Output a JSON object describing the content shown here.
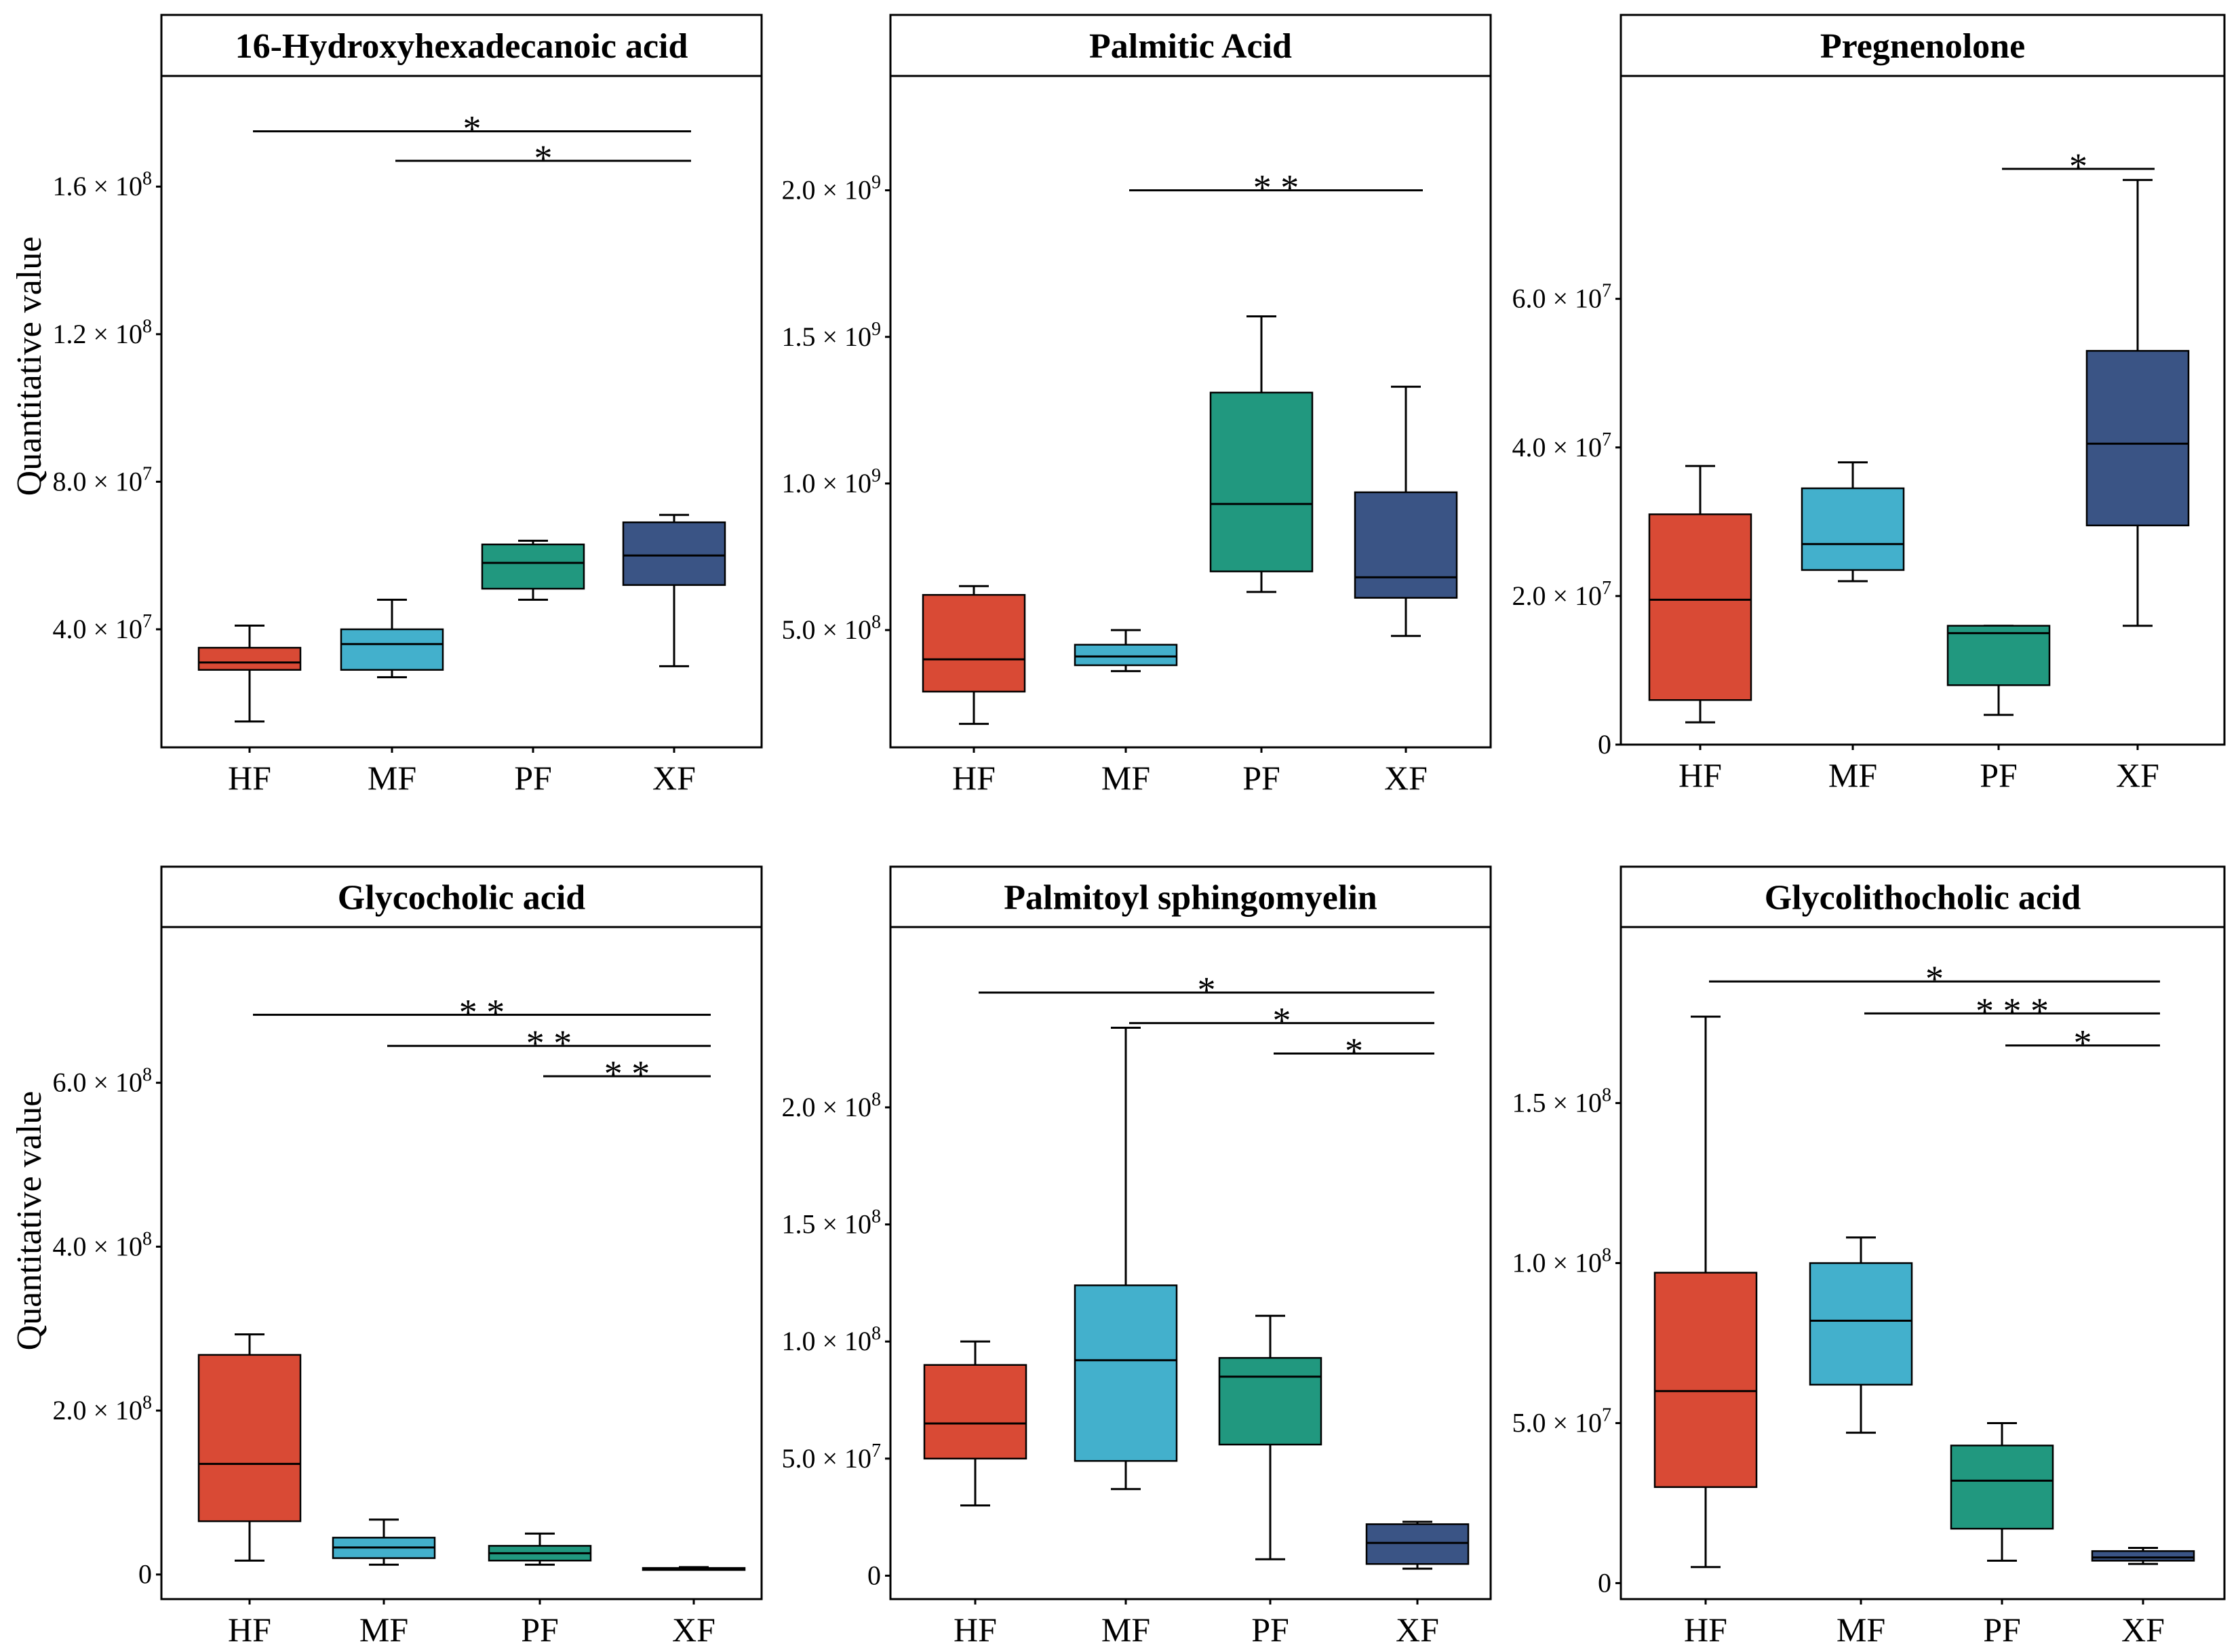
{
  "figure": {
    "ylabel_top": "Quantitative value",
    "ylabel_bottom": "Quantitative value"
  },
  "colors": {
    "HF": "#D94A35",
    "MF": "#43B0CC",
    "PF": "#21987F",
    "XF": "#3A5485"
  },
  "chart_data": [
    {
      "type": "box",
      "title": "16-Hydroxyhexadecanoic acid",
      "ylabel": "Quantitative value",
      "categories": [
        "HF",
        "MF",
        "PF",
        "XF"
      ],
      "ylim": [
        8000000,
        190000000
      ],
      "yticks": [
        {
          "value": 40000000,
          "label": "4.0 × 10⁷"
        },
        {
          "value": 80000000,
          "label": "8.0 × 10⁷"
        },
        {
          "value": 120000000,
          "label": "1.2 × 10⁸"
        },
        {
          "value": 160000000,
          "label": "1.6 × 10⁸"
        }
      ],
      "boxes": [
        {
          "min": 15000000,
          "q1": 29000000,
          "median": 31000000,
          "q3": 35000000,
          "max": 41000000
        },
        {
          "min": 27000000,
          "q1": 29000000,
          "median": 36000000,
          "q3": 40000000,
          "max": 48000000
        },
        {
          "min": 48000000,
          "q1": 51000000,
          "median": 58000000,
          "q3": 63000000,
          "max": 64000000
        },
        {
          "min": 30000000,
          "q1": 52000000,
          "median": 60000000,
          "q3": 69000000,
          "max": 71000000
        }
      ],
      "significance": [
        {
          "from": 0,
          "to": 3,
          "label": "*",
          "y": 175000000
        },
        {
          "from": 1,
          "to": 3,
          "label": "*",
          "y": 167000000
        }
      ]
    },
    {
      "type": "box",
      "title": "Palmitic Acid",
      "ylabel": "",
      "categories": [
        "HF",
        "MF",
        "PF",
        "XF"
      ],
      "ylim": [
        100000000,
        2390000000
      ],
      "yticks": [
        {
          "value": 500000000,
          "label": "5.0 × 10⁸"
        },
        {
          "value": 1000000000,
          "label": "1.0 × 10⁹"
        },
        {
          "value": 1500000000,
          "label": "1.5 × 10⁹"
        },
        {
          "value": 2000000000,
          "label": "2.0 × 10⁹"
        }
      ],
      "boxes": [
        {
          "min": 180000000,
          "q1": 290000000,
          "median": 400000000,
          "q3": 620000000,
          "max": 650000000
        },
        {
          "min": 360000000,
          "q1": 380000000,
          "median": 410000000,
          "q3": 450000000,
          "max": 500000000
        },
        {
          "min": 630000000,
          "q1": 700000000,
          "median": 930000000,
          "q3": 1310000000,
          "max": 1570000000
        },
        {
          "min": 480000000,
          "q1": 610000000,
          "median": 680000000,
          "q3": 970000000,
          "max": 1330000000
        }
      ],
      "significance": [
        {
          "from": 1,
          "to": 3,
          "label": "* *",
          "y": 2000000000
        }
      ]
    },
    {
      "type": "box",
      "title": "Pregnenolone",
      "ylabel": "",
      "categories": [
        "HF",
        "MF",
        "PF",
        "XF"
      ],
      "ylim": [
        0,
        90000000
      ],
      "yticks": [
        {
          "value": 0,
          "label": "0"
        },
        {
          "value": 20000000,
          "label": "2.0 × 10⁷"
        },
        {
          "value": 40000000,
          "label": "4.0 × 10⁷"
        },
        {
          "value": 60000000,
          "label": "6.0 × 10⁷"
        }
      ],
      "boxes": [
        {
          "min": 3000000,
          "q1": 6000000,
          "median": 19500000,
          "q3": 31000000,
          "max": 37500000
        },
        {
          "min": 22000000,
          "q1": 23500000,
          "median": 27000000,
          "q3": 34500000,
          "max": 38000000
        },
        {
          "min": 4000000,
          "q1": 8000000,
          "median": 15000000,
          "q3": 16000000,
          "max": 16000000
        },
        {
          "min": 16000000,
          "q1": 29500000,
          "median": 40500000,
          "q3": 53000000,
          "max": 76000000
        }
      ],
      "significance": [
        {
          "from": 2,
          "to": 3,
          "label": "*",
          "y": 77500000
        }
      ]
    },
    {
      "type": "box",
      "title": "Glycocholic acid",
      "ylabel": "Quantitative value",
      "categories": [
        "HF",
        "MF",
        "PF",
        "XF"
      ],
      "ylim": [
        -30000000,
        790000000
      ],
      "yticks": [
        {
          "value": 0,
          "label": "0"
        },
        {
          "value": 200000000,
          "label": "2.0 × 10⁸"
        },
        {
          "value": 400000000,
          "label": "4.0 × 10⁸"
        },
        {
          "value": 600000000,
          "label": "6.0 × 10⁸"
        }
      ],
      "boxes": [
        {
          "min": 17000000,
          "q1": 65000000,
          "median": 135000000,
          "q3": 268000000,
          "max": 293000000
        },
        {
          "min": 12000000,
          "q1": 20000000,
          "median": 33000000,
          "q3": 45000000,
          "max": 67000000
        },
        {
          "min": 12000000,
          "q1": 17000000,
          "median": 26000000,
          "q3": 35000000,
          "max": 50000000
        },
        {
          "min": 6000000,
          "q1": 7000000,
          "median": 7500000,
          "q3": 8000000,
          "max": 9000000
        }
      ],
      "significance": [
        {
          "from": 0,
          "to": 3,
          "label": "* *",
          "y": 683000000
        },
        {
          "from": 1,
          "to": 3,
          "label": "* *",
          "y": 645000000
        },
        {
          "from": 2,
          "to": 3,
          "label": "* *",
          "y": 608000000
        }
      ]
    },
    {
      "type": "box",
      "title": "Palmitoyl sphingomyelin",
      "ylabel": "",
      "categories": [
        "HF",
        "MF",
        "PF",
        "XF"
      ],
      "ylim": [
        -10000000,
        277000000
      ],
      "yticks": [
        {
          "value": 0,
          "label": "0"
        },
        {
          "value": 50000000,
          "label": "5.0 × 10⁷"
        },
        {
          "value": 100000000,
          "label": "1.0 × 10⁸"
        },
        {
          "value": 150000000,
          "label": "1.5 × 10⁸"
        },
        {
          "value": 200000000,
          "label": "2.0 × 10⁸"
        }
      ],
      "boxes": [
        {
          "min": 30000000,
          "q1": 50000000,
          "median": 65000000,
          "q3": 90000000,
          "max": 100000000
        },
        {
          "min": 37000000,
          "q1": 49000000,
          "median": 92000000,
          "q3": 124000000,
          "max": 234000000
        },
        {
          "min": 7000000,
          "q1": 56000000,
          "median": 85000000,
          "q3": 93000000,
          "max": 111000000
        },
        {
          "min": 3000000,
          "q1": 5000000,
          "median": 14000000,
          "q3": 22000000,
          "max": 23000000
        }
      ],
      "significance": [
        {
          "from": 0,
          "to": 3,
          "label": "*",
          "y": 249000000
        },
        {
          "from": 1,
          "to": 3,
          "label": "*",
          "y": 236000000
        },
        {
          "from": 2,
          "to": 3,
          "label": "*",
          "y": 223000000
        }
      ]
    },
    {
      "type": "box",
      "title": "Glycolithocholic acid",
      "ylabel": "",
      "categories": [
        "HF",
        "MF",
        "PF",
        "XF"
      ],
      "ylim": [
        -5000000,
        205000000
      ],
      "yticks": [
        {
          "value": 0,
          "label": "0"
        },
        {
          "value": 50000000,
          "label": "5.0 × 10⁷"
        },
        {
          "value": 100000000,
          "label": "1.0 × 10⁸"
        },
        {
          "value": 150000000,
          "label": "1.5 × 10⁸"
        }
      ],
      "boxes": [
        {
          "min": 5000000,
          "q1": 30000000,
          "median": 60000000,
          "q3": 97000000,
          "max": 177000000
        },
        {
          "min": 47000000,
          "q1": 62000000,
          "median": 82000000,
          "q3": 100000000,
          "max": 108000000
        },
        {
          "min": 7000000,
          "q1": 17000000,
          "median": 32000000,
          "q3": 43000000,
          "max": 50000000
        },
        {
          "min": 6000000,
          "q1": 7000000,
          "median": 8000000,
          "q3": 10000000,
          "max": 11000000
        }
      ],
      "significance": [
        {
          "from": 0,
          "to": 3,
          "label": "*",
          "y": 188000000
        },
        {
          "from": 1,
          "to": 3,
          "label": "* * *",
          "y": 178000000
        },
        {
          "from": 2,
          "to": 3,
          "label": "*",
          "y": 168000000
        }
      ]
    }
  ]
}
